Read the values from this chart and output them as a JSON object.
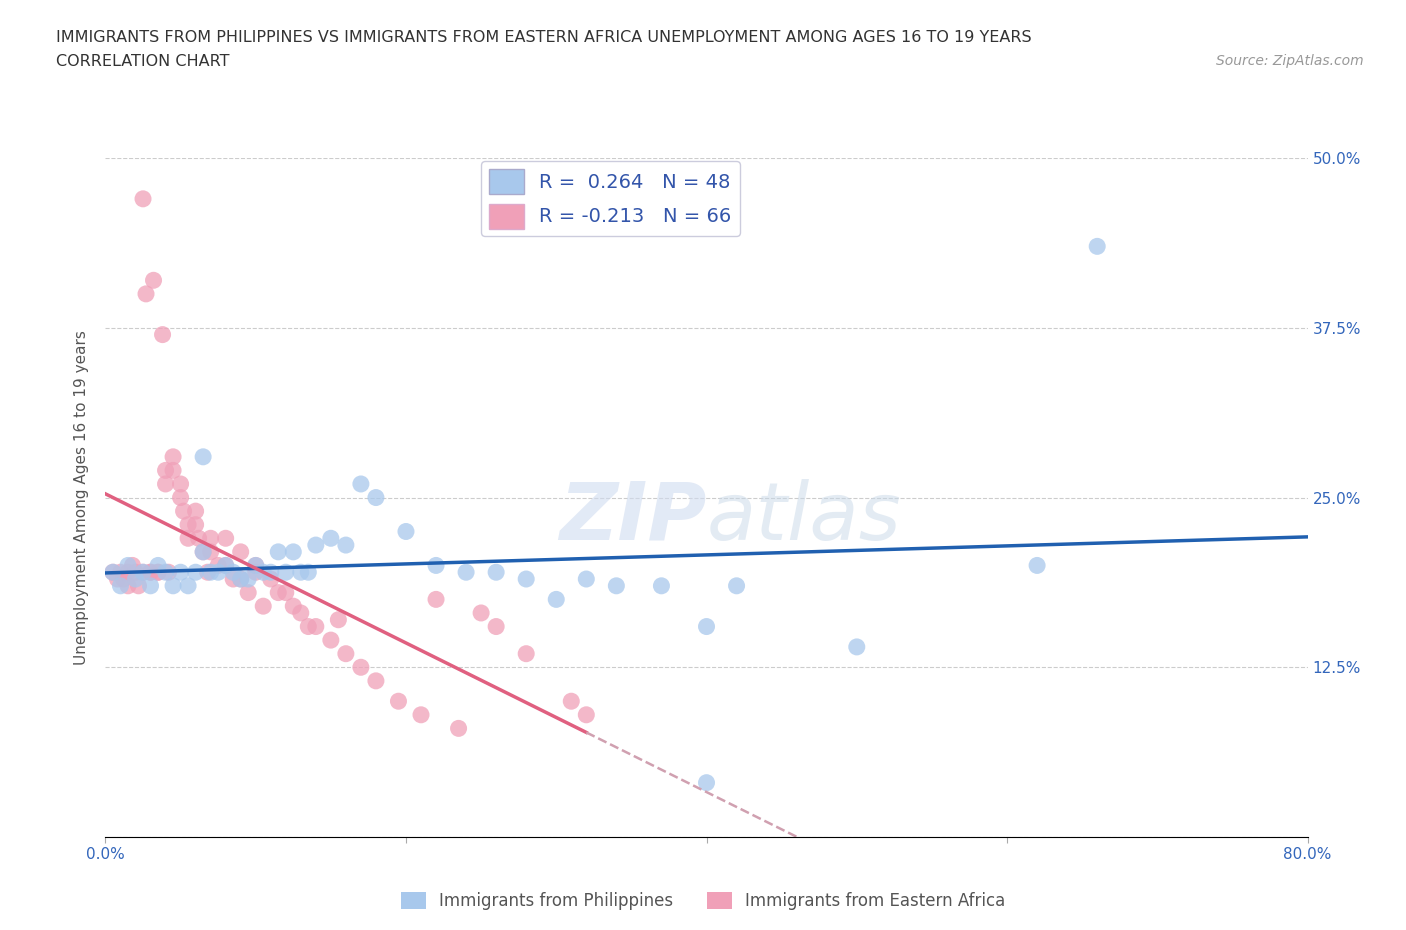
{
  "title_line1": "IMMIGRANTS FROM PHILIPPINES VS IMMIGRANTS FROM EASTERN AFRICA UNEMPLOYMENT AMONG AGES 16 TO 19 YEARS",
  "title_line2": "CORRELATION CHART",
  "source_text": "Source: ZipAtlas.com",
  "ylabel": "Unemployment Among Ages 16 to 19 years",
  "xlim": [
    0.0,
    0.8
  ],
  "ylim": [
    0.0,
    0.5
  ],
  "watermark": "ZIPatlas",
  "blue_color": "#A8C8EC",
  "pink_color": "#F0A0B8",
  "blue_line_color": "#2060B0",
  "pink_line_color": "#E06080",
  "pink_dash_color": "#D0A0B0",
  "R_blue": 0.264,
  "N_blue": 48,
  "R_pink": -0.213,
  "N_pink": 66,
  "legend_label_blue": "Immigrants from Philippines",
  "legend_label_pink": "Immigrants from Eastern Africa",
  "philippines_x": [
    0.005,
    0.01,
    0.015,
    0.02,
    0.025,
    0.03,
    0.035,
    0.04,
    0.045,
    0.05,
    0.055,
    0.06,
    0.065,
    0.065,
    0.07,
    0.075,
    0.08,
    0.085,
    0.09,
    0.095,
    0.1,
    0.105,
    0.11,
    0.115,
    0.12,
    0.125,
    0.13,
    0.135,
    0.14,
    0.15,
    0.16,
    0.17,
    0.18,
    0.2,
    0.22,
    0.24,
    0.26,
    0.28,
    0.3,
    0.32,
    0.34,
    0.37,
    0.4,
    0.4,
    0.42,
    0.5,
    0.62,
    0.66
  ],
  "philippines_y": [
    0.195,
    0.185,
    0.2,
    0.19,
    0.195,
    0.185,
    0.2,
    0.195,
    0.185,
    0.195,
    0.185,
    0.195,
    0.28,
    0.21,
    0.195,
    0.195,
    0.2,
    0.195,
    0.19,
    0.19,
    0.2,
    0.195,
    0.195,
    0.21,
    0.195,
    0.21,
    0.195,
    0.195,
    0.215,
    0.22,
    0.215,
    0.26,
    0.25,
    0.225,
    0.2,
    0.195,
    0.195,
    0.19,
    0.175,
    0.19,
    0.185,
    0.185,
    0.155,
    0.04,
    0.185,
    0.14,
    0.2,
    0.435
  ],
  "eastern_africa_x": [
    0.005,
    0.008,
    0.01,
    0.012,
    0.015,
    0.015,
    0.018,
    0.02,
    0.022,
    0.025,
    0.025,
    0.027,
    0.03,
    0.03,
    0.032,
    0.035,
    0.035,
    0.038,
    0.04,
    0.04,
    0.042,
    0.045,
    0.045,
    0.05,
    0.05,
    0.052,
    0.055,
    0.055,
    0.06,
    0.06,
    0.062,
    0.065,
    0.068,
    0.07,
    0.07,
    0.075,
    0.08,
    0.08,
    0.085,
    0.09,
    0.09,
    0.095,
    0.1,
    0.1,
    0.105,
    0.11,
    0.115,
    0.12,
    0.125,
    0.13,
    0.135,
    0.14,
    0.15,
    0.155,
    0.16,
    0.17,
    0.18,
    0.195,
    0.21,
    0.22,
    0.235,
    0.25,
    0.26,
    0.28,
    0.31,
    0.32
  ],
  "eastern_africa_y": [
    0.195,
    0.19,
    0.195,
    0.19,
    0.195,
    0.185,
    0.2,
    0.195,
    0.185,
    0.47,
    0.195,
    0.4,
    0.195,
    0.195,
    0.41,
    0.195,
    0.195,
    0.37,
    0.27,
    0.26,
    0.195,
    0.28,
    0.27,
    0.26,
    0.25,
    0.24,
    0.23,
    0.22,
    0.24,
    0.23,
    0.22,
    0.21,
    0.195,
    0.22,
    0.21,
    0.2,
    0.22,
    0.2,
    0.19,
    0.21,
    0.19,
    0.18,
    0.2,
    0.195,
    0.17,
    0.19,
    0.18,
    0.18,
    0.17,
    0.165,
    0.155,
    0.155,
    0.145,
    0.16,
    0.135,
    0.125,
    0.115,
    0.1,
    0.09,
    0.175,
    0.08,
    0.165,
    0.155,
    0.135,
    0.1,
    0.09
  ]
}
